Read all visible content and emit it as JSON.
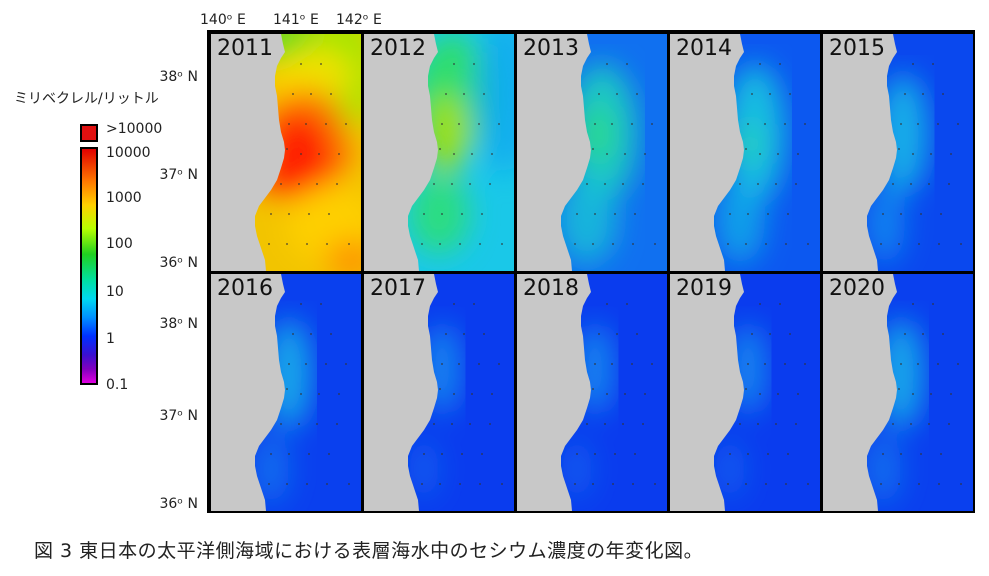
{
  "axes": {
    "lon_labels": [
      "140ᵒ E",
      "141ᵒ E",
      "142ᵒ E"
    ],
    "lat_labels": [
      "38ᵒ N",
      "37ᵒ N",
      "36ᵒ N"
    ]
  },
  "colorbar": {
    "unit": "ミリベクレル/リットル",
    "overflow_label": ">10000",
    "ticks": [
      "10000",
      "1000",
      "100",
      "10",
      "1",
      "0.1"
    ]
  },
  "panels": [
    {
      "year": "2011",
      "level": "high"
    },
    {
      "year": "2012",
      "level": "mid"
    },
    {
      "year": "2013",
      "level": "low3"
    },
    {
      "year": "2014",
      "level": "low4"
    },
    {
      "year": "2015",
      "level": "low5"
    },
    {
      "year": "2016",
      "level": "low6"
    },
    {
      "year": "2017",
      "level": "low7"
    },
    {
      "year": "2018",
      "level": "low7"
    },
    {
      "year": "2019",
      "level": "low7"
    },
    {
      "year": "2020",
      "level": "low6"
    }
  ],
  "caption": "図 3  東日本の太平洋側海域における表層海水中のセシウム濃度の年変化図。",
  "colors": {
    "land": "#c8c8c8",
    "sea_base": "#0a3cf0",
    "border": "#000000"
  }
}
